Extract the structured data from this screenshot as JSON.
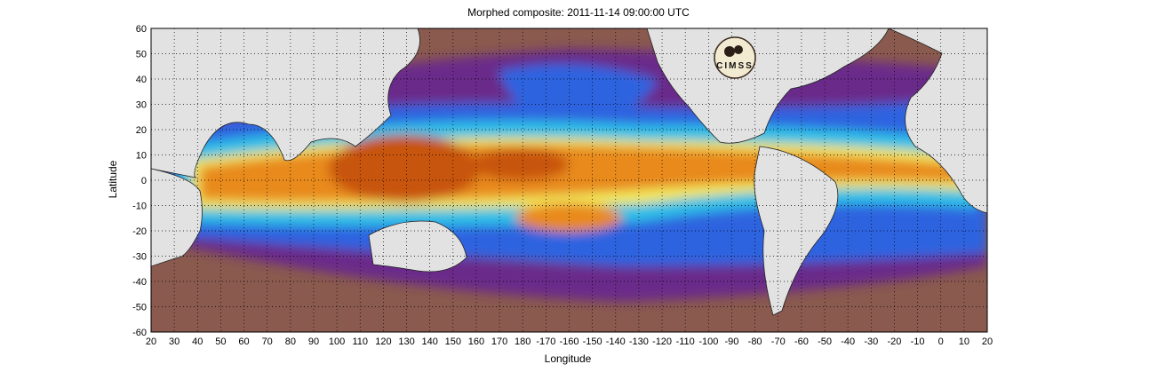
{
  "title": "Morphed composite: 2011-11-14 09:00:00 UTC",
  "xaxis": {
    "label": "Longitude",
    "ticks": [
      "20",
      "30",
      "40",
      "50",
      "60",
      "70",
      "80",
      "90",
      "100",
      "110",
      "120",
      "130",
      "140",
      "150",
      "160",
      "170",
      "180",
      "-170",
      "-160",
      "-150",
      "-140",
      "-130",
      "-120",
      "-110",
      "-100",
      "-90",
      "-80",
      "-70",
      "-60",
      "-50",
      "-40",
      "-30",
      "-20",
      "-10",
      "0",
      "10",
      "20"
    ]
  },
  "yaxis": {
    "label": "Latitude",
    "ticks": [
      "60",
      "50",
      "40",
      "30",
      "20",
      "10",
      "0",
      "-10",
      "-20",
      "-30",
      "-40",
      "-50",
      "-60"
    ],
    "range": [
      -60,
      60
    ]
  },
  "colors": {
    "land": "#e2e2e2",
    "dry": "#8a5a4e",
    "low": "#6a2a8a",
    "mid_low": "#2f63e0",
    "mid": "#2fbfe6",
    "mid_high": "#f2e85a",
    "high": "#e88a1c",
    "very_high": "#c85410"
  },
  "logo": {
    "text": "CIMSS"
  }
}
